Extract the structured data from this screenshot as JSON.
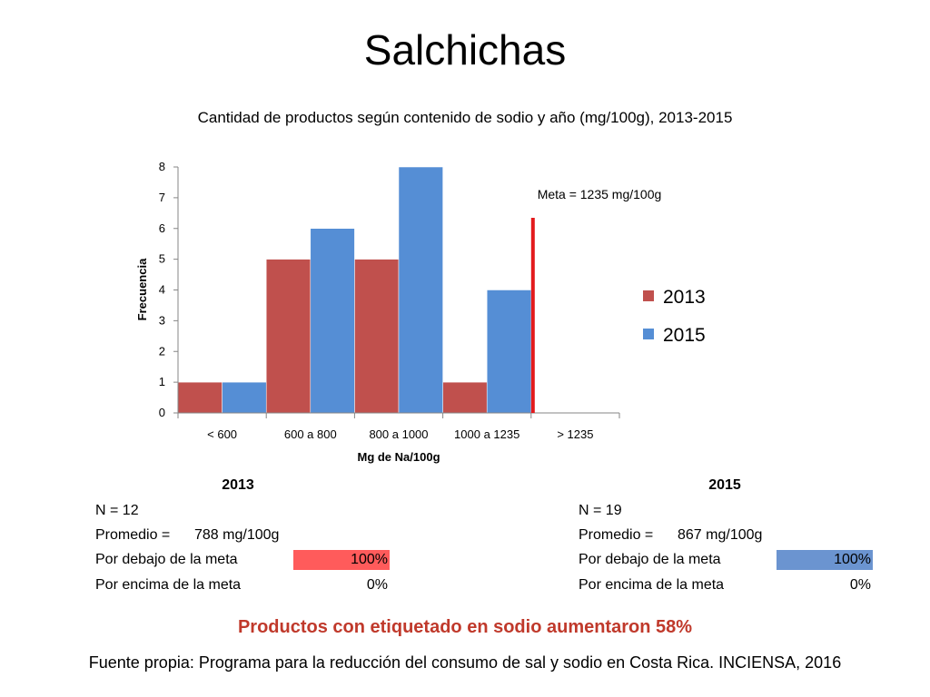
{
  "slide": {
    "title": "Salchichas",
    "headline": "Productos con etiquetado en sodio aumentaron 58%",
    "headline_color": "#C0392B",
    "source": "Fuente propia: Programa para la reducción del consumo de sal y sodio en Costa Rica. INCIENSA, 2016"
  },
  "chart_data": {
    "type": "bar",
    "title": "Cantidad de productos según contenido de sodio y año (mg/100g), 2013-2015",
    "xlabel": "Mg de Na/100g",
    "ylabel": "Frecuencia",
    "categories": [
      "< 600",
      "600 a 800",
      "800 a 1000",
      "1000 a 1235",
      "> 1235"
    ],
    "series": [
      {
        "name": "2013",
        "values": [
          1,
          5,
          5,
          1,
          0
        ],
        "color": "#C0504D"
      },
      {
        "name": "2015",
        "values": [
          1,
          6,
          8,
          4,
          0
        ],
        "color": "#558ED5"
      }
    ],
    "ylim": [
      0,
      8
    ],
    "yticks": [
      "0",
      "1",
      "2",
      "3",
      "4",
      "5",
      "6",
      "7",
      "8"
    ],
    "grid": false,
    "legend": "right",
    "annotation": {
      "text": "Meta = 1235 mg/100g",
      "color": "#E31A1C"
    }
  },
  "tables": [
    {
      "year": "2013",
      "n": "N = 12",
      "promedio_label": "Promedio =",
      "promedio_value": "788 mg/100g",
      "below_label": "Por debajo de la meta",
      "below_value": "100%",
      "below_fill": 1.0,
      "above_label": "Por encima de la meta",
      "above_value": "0%",
      "bar_color": "#FF5B5B"
    },
    {
      "year": "2015",
      "n": "N = 19",
      "promedio_label": "Promedio =",
      "promedio_value": "867 mg/100g",
      "below_label": "Por debajo de la meta",
      "below_value": "100%",
      "below_fill": 1.0,
      "above_label": "Por encima de la meta",
      "above_value": "0%",
      "bar_color": "#6B94D0"
    }
  ]
}
